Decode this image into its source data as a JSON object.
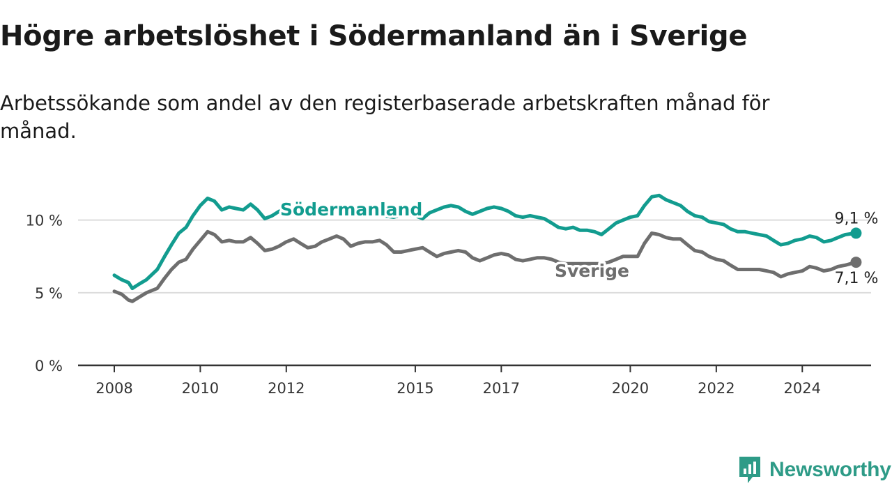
{
  "chart_data": {
    "type": "line",
    "title": "Högre arbetslöshet i Södermanland än i Sverige",
    "subtitle": "Arbetssökande som andel av den registerbaserade arbetskraften månad för månad.",
    "ylim": [
      0,
      12
    ],
    "xlim": [
      2008.0,
      2025.6
    ],
    "y_ticks": [
      {
        "value": 0,
        "label": "0 %"
      },
      {
        "value": 5,
        "label": "5 %"
      },
      {
        "value": 10,
        "label": "10 %"
      }
    ],
    "x_ticks": [
      {
        "value": 2008,
        "label": "2008"
      },
      {
        "value": 2010,
        "label": "2010"
      },
      {
        "value": 2012,
        "label": "2012"
      },
      {
        "value": 2015,
        "label": "2015"
      },
      {
        "value": 2017,
        "label": "2017"
      },
      {
        "value": 2020,
        "label": "2020"
      },
      {
        "value": 2022,
        "label": "2022"
      },
      {
        "value": 2024,
        "label": "2024"
      }
    ],
    "grid": true,
    "series": [
      {
        "name": "Södermanland",
        "color": "#129c8f",
        "end_label": "9,1 %",
        "points": [
          [
            2008.0,
            6.2
          ],
          [
            2008.17,
            5.9
          ],
          [
            2008.33,
            5.7
          ],
          [
            2008.42,
            5.3
          ],
          [
            2008.58,
            5.6
          ],
          [
            2008.75,
            5.9
          ],
          [
            2009.0,
            6.6
          ],
          [
            2009.17,
            7.5
          ],
          [
            2009.33,
            8.3
          ],
          [
            2009.5,
            9.1
          ],
          [
            2009.67,
            9.5
          ],
          [
            2009.83,
            10.3
          ],
          [
            2010.0,
            11.0
          ],
          [
            2010.17,
            11.5
          ],
          [
            2010.33,
            11.3
          ],
          [
            2010.5,
            10.7
          ],
          [
            2010.67,
            10.9
          ],
          [
            2010.83,
            10.8
          ],
          [
            2011.0,
            10.7
          ],
          [
            2011.17,
            11.1
          ],
          [
            2011.33,
            10.7
          ],
          [
            2011.5,
            10.1
          ],
          [
            2011.67,
            10.3
          ],
          [
            2011.83,
            10.6
          ],
          [
            2012.0,
            10.8
          ],
          [
            2012.25,
            10.6
          ],
          [
            2012.5,
            10.4
          ],
          [
            2012.75,
            10.7
          ],
          [
            2013.0,
            10.9
          ],
          [
            2013.25,
            10.8
          ],
          [
            2013.5,
            10.6
          ],
          [
            2013.75,
            10.5
          ],
          [
            2014.0,
            10.5
          ],
          [
            2014.25,
            10.3
          ],
          [
            2014.5,
            10.2
          ],
          [
            2014.75,
            10.4
          ],
          [
            2015.0,
            10.3
          ],
          [
            2015.17,
            10.1
          ],
          [
            2015.33,
            10.5
          ],
          [
            2015.5,
            10.7
          ],
          [
            2015.67,
            10.9
          ],
          [
            2015.83,
            11.0
          ],
          [
            2016.0,
            10.9
          ],
          [
            2016.17,
            10.6
          ],
          [
            2016.33,
            10.4
          ],
          [
            2016.5,
            10.6
          ],
          [
            2016.67,
            10.8
          ],
          [
            2016.83,
            10.9
          ],
          [
            2017.0,
            10.8
          ],
          [
            2017.17,
            10.6
          ],
          [
            2017.33,
            10.3
          ],
          [
            2017.5,
            10.2
          ],
          [
            2017.67,
            10.3
          ],
          [
            2017.83,
            10.2
          ],
          [
            2018.0,
            10.1
          ],
          [
            2018.17,
            9.8
          ],
          [
            2018.33,
            9.5
          ],
          [
            2018.5,
            9.4
          ],
          [
            2018.67,
            9.5
          ],
          [
            2018.83,
            9.3
          ],
          [
            2019.0,
            9.3
          ],
          [
            2019.17,
            9.2
          ],
          [
            2019.33,
            9.0
          ],
          [
            2019.5,
            9.4
          ],
          [
            2019.67,
            9.8
          ],
          [
            2019.83,
            10.0
          ],
          [
            2020.0,
            10.2
          ],
          [
            2020.17,
            10.3
          ],
          [
            2020.33,
            11.0
          ],
          [
            2020.5,
            11.6
          ],
          [
            2020.67,
            11.7
          ],
          [
            2020.83,
            11.4
          ],
          [
            2021.0,
            11.2
          ],
          [
            2021.17,
            11.0
          ],
          [
            2021.33,
            10.6
          ],
          [
            2021.5,
            10.3
          ],
          [
            2021.67,
            10.2
          ],
          [
            2021.83,
            9.9
          ],
          [
            2022.0,
            9.8
          ],
          [
            2022.17,
            9.7
          ],
          [
            2022.33,
            9.4
          ],
          [
            2022.5,
            9.2
          ],
          [
            2022.67,
            9.2
          ],
          [
            2022.83,
            9.1
          ],
          [
            2023.0,
            9.0
          ],
          [
            2023.17,
            8.9
          ],
          [
            2023.33,
            8.6
          ],
          [
            2023.5,
            8.3
          ],
          [
            2023.67,
            8.4
          ],
          [
            2023.83,
            8.6
          ],
          [
            2024.0,
            8.7
          ],
          [
            2024.17,
            8.9
          ],
          [
            2024.33,
            8.8
          ],
          [
            2024.5,
            8.5
          ],
          [
            2024.67,
            8.6
          ],
          [
            2024.83,
            8.8
          ],
          [
            2025.0,
            9.0
          ],
          [
            2025.25,
            9.1
          ]
        ]
      },
      {
        "name": "Sverige",
        "color": "#6e6e6e",
        "end_label": "7,1 %",
        "points": [
          [
            2008.0,
            5.1
          ],
          [
            2008.17,
            4.9
          ],
          [
            2008.33,
            4.5
          ],
          [
            2008.42,
            4.4
          ],
          [
            2008.58,
            4.7
          ],
          [
            2008.75,
            5.0
          ],
          [
            2009.0,
            5.3
          ],
          [
            2009.17,
            6.0
          ],
          [
            2009.33,
            6.6
          ],
          [
            2009.5,
            7.1
          ],
          [
            2009.67,
            7.3
          ],
          [
            2009.83,
            8.0
          ],
          [
            2010.0,
            8.6
          ],
          [
            2010.17,
            9.2
          ],
          [
            2010.33,
            9.0
          ],
          [
            2010.5,
            8.5
          ],
          [
            2010.67,
            8.6
          ],
          [
            2010.83,
            8.5
          ],
          [
            2011.0,
            8.5
          ],
          [
            2011.17,
            8.8
          ],
          [
            2011.33,
            8.4
          ],
          [
            2011.5,
            7.9
          ],
          [
            2011.67,
            8.0
          ],
          [
            2011.83,
            8.2
          ],
          [
            2012.0,
            8.5
          ],
          [
            2012.17,
            8.7
          ],
          [
            2012.33,
            8.4
          ],
          [
            2012.5,
            8.1
          ],
          [
            2012.67,
            8.2
          ],
          [
            2012.83,
            8.5
          ],
          [
            2013.0,
            8.7
          ],
          [
            2013.17,
            8.9
          ],
          [
            2013.33,
            8.7
          ],
          [
            2013.5,
            8.2
          ],
          [
            2013.67,
            8.4
          ],
          [
            2013.83,
            8.5
          ],
          [
            2014.0,
            8.5
          ],
          [
            2014.17,
            8.6
          ],
          [
            2014.33,
            8.3
          ],
          [
            2014.5,
            7.8
          ],
          [
            2014.67,
            7.8
          ],
          [
            2014.83,
            7.9
          ],
          [
            2015.0,
            8.0
          ],
          [
            2015.17,
            8.1
          ],
          [
            2015.33,
            7.8
          ],
          [
            2015.5,
            7.5
          ],
          [
            2015.67,
            7.7
          ],
          [
            2015.83,
            7.8
          ],
          [
            2016.0,
            7.9
          ],
          [
            2016.17,
            7.8
          ],
          [
            2016.33,
            7.4
          ],
          [
            2016.5,
            7.2
          ],
          [
            2016.67,
            7.4
          ],
          [
            2016.83,
            7.6
          ],
          [
            2017.0,
            7.7
          ],
          [
            2017.17,
            7.6
          ],
          [
            2017.33,
            7.3
          ],
          [
            2017.5,
            7.2
          ],
          [
            2017.67,
            7.3
          ],
          [
            2017.83,
            7.4
          ],
          [
            2018.0,
            7.4
          ],
          [
            2018.17,
            7.3
          ],
          [
            2018.33,
            7.1
          ],
          [
            2018.5,
            7.0
          ],
          [
            2018.67,
            7.0
          ],
          [
            2018.83,
            7.0
          ],
          [
            2019.0,
            7.0
          ],
          [
            2019.17,
            7.0
          ],
          [
            2019.33,
            7.0
          ],
          [
            2019.5,
            7.1
          ],
          [
            2019.67,
            7.3
          ],
          [
            2019.83,
            7.5
          ],
          [
            2020.0,
            7.5
          ],
          [
            2020.17,
            7.5
          ],
          [
            2020.33,
            8.4
          ],
          [
            2020.5,
            9.1
          ],
          [
            2020.67,
            9.0
          ],
          [
            2020.83,
            8.8
          ],
          [
            2021.0,
            8.7
          ],
          [
            2021.17,
            8.7
          ],
          [
            2021.33,
            8.3
          ],
          [
            2021.5,
            7.9
          ],
          [
            2021.67,
            7.8
          ],
          [
            2021.83,
            7.5
          ],
          [
            2022.0,
            7.3
          ],
          [
            2022.17,
            7.2
          ],
          [
            2022.33,
            6.9
          ],
          [
            2022.5,
            6.6
          ],
          [
            2022.67,
            6.6
          ],
          [
            2022.83,
            6.6
          ],
          [
            2023.0,
            6.6
          ],
          [
            2023.17,
            6.5
          ],
          [
            2023.33,
            6.4
          ],
          [
            2023.5,
            6.1
          ],
          [
            2023.67,
            6.3
          ],
          [
            2023.83,
            6.4
          ],
          [
            2024.0,
            6.5
          ],
          [
            2024.17,
            6.8
          ],
          [
            2024.33,
            6.7
          ],
          [
            2024.5,
            6.5
          ],
          [
            2024.67,
            6.6
          ],
          [
            2024.83,
            6.8
          ],
          [
            2025.0,
            6.9
          ],
          [
            2025.25,
            7.1
          ]
        ]
      }
    ]
  },
  "branding": {
    "name": "Newsworthy",
    "color": "#2e9b87",
    "icon": "newsworthy-logo-icon"
  }
}
